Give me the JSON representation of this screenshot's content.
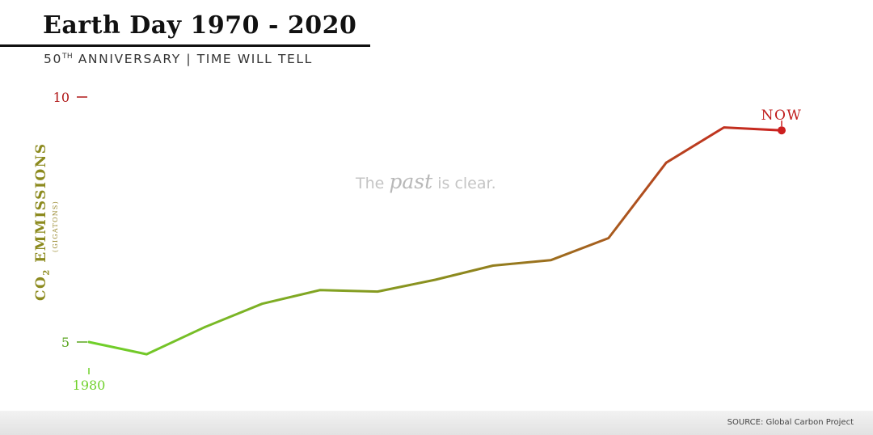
{
  "header": {
    "title": "Earth Day 1970 - 2020",
    "subtitle_prefix": "50",
    "subtitle_sup": "TH",
    "subtitle_rest": " ANNIVERSARY | TIME WILL TELL"
  },
  "annotation": {
    "before": "The ",
    "emphasis": "past",
    "after": " is clear."
  },
  "source": "SOURCE: Global Carbon Project",
  "colors": {
    "start": "#6fd12a",
    "end": "#cc1f1f",
    "mid": "#8c8a1e"
  },
  "chart_data": {
    "type": "line",
    "y_axis_title": {
      "main": "CO",
      "sub": "2",
      "rest": " EMMISSIONS",
      "unit": "(GIGATONS)"
    },
    "y_ticks": [
      {
        "value": 5,
        "label": "5"
      },
      {
        "value": 10,
        "label": "10"
      }
    ],
    "x_tick": {
      "index": 0,
      "label": "1980"
    },
    "end_label": "NOW",
    "ylim": [
      5,
      10
    ],
    "series": [
      {
        "values": [
          5.0,
          4.75,
          5.3,
          5.78,
          6.06,
          6.03,
          6.27,
          6.56,
          6.67,
          7.12,
          8.66,
          9.38,
          9.32
        ]
      }
    ]
  }
}
